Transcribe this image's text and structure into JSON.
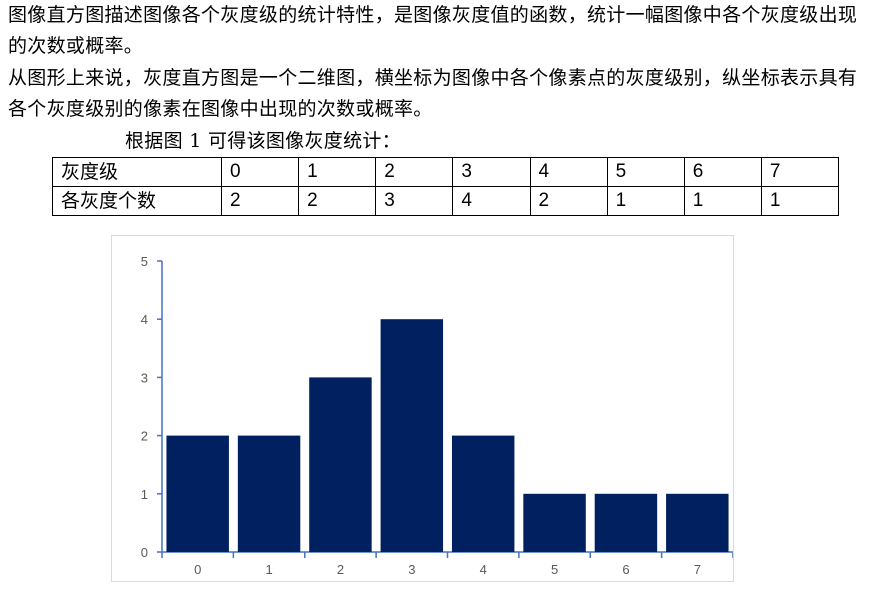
{
  "paragraphs": [
    "图像直方图描述图像各个灰度级的统计特性，是图像灰度值的函数，统计一幅图像中各个灰度级出现的次数或概率。",
    "从图形上来说，灰度直方图是一个二维图，横坐标为图像中各个像素点的灰度级别，纵坐标表示具有各个灰度级别的像素在图像中出现的次数或概率。"
  ],
  "caption": "根据图 1 可得该图像灰度统计：",
  "table": {
    "row_headers": [
      "灰度级",
      "各灰度个数"
    ],
    "levels": [
      "0",
      "1",
      "2",
      "3",
      "4",
      "5",
      "6",
      "7"
    ],
    "counts": [
      "2",
      "2",
      "3",
      "4",
      "2",
      "1",
      "1",
      "1"
    ]
  },
  "chart_data": {
    "type": "bar",
    "categories": [
      "0",
      "1",
      "2",
      "3",
      "4",
      "5",
      "6",
      "7"
    ],
    "values": [
      2,
      2,
      3,
      4,
      2,
      1,
      1,
      1
    ],
    "title": "",
    "xlabel": "",
    "ylabel": "",
    "ylim": [
      0,
      5
    ],
    "yticks": [
      "0",
      "1",
      "2",
      "3",
      "4",
      "5"
    ],
    "grid": false,
    "legend": "none",
    "bar_color": "#002060",
    "axis_color": "#4472c4",
    "tick_label_color": "#595959"
  }
}
